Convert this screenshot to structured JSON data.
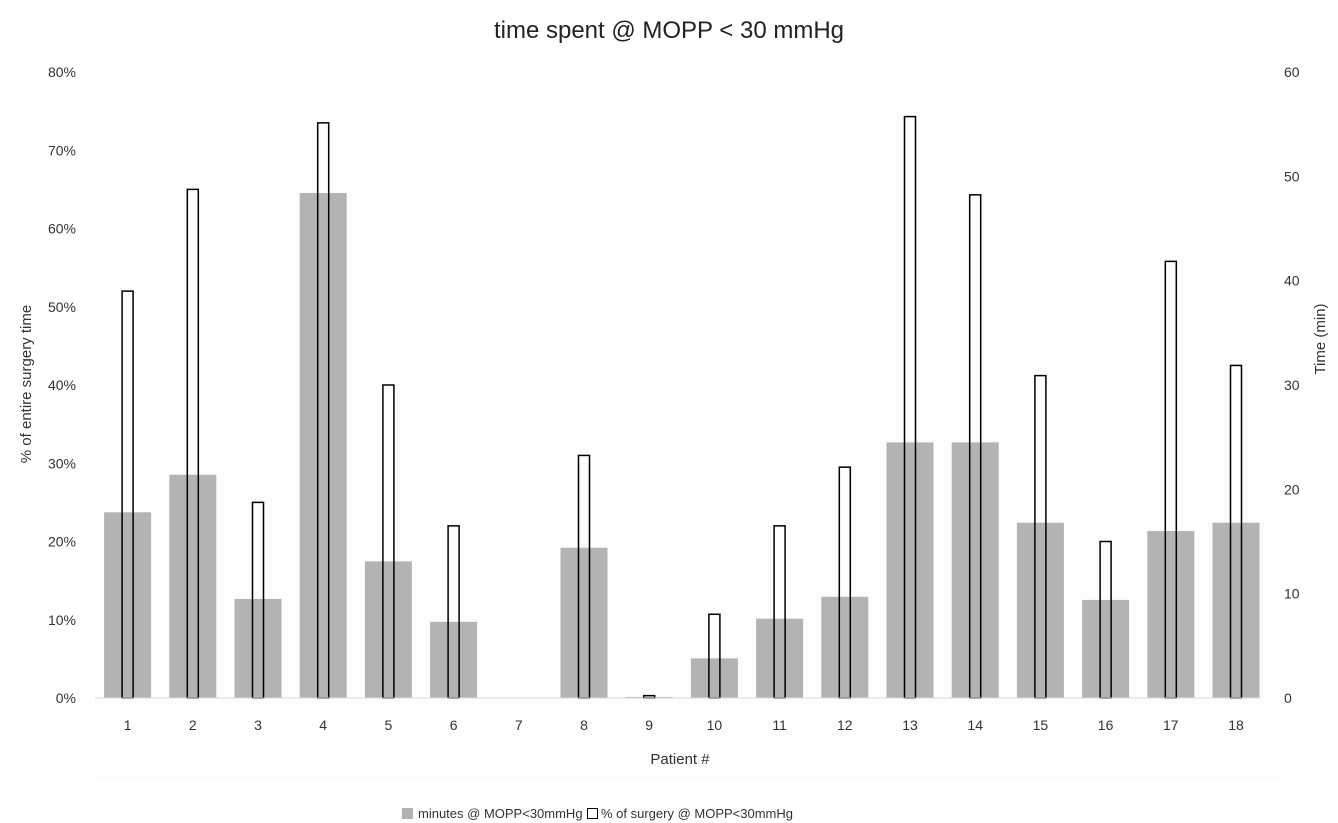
{
  "chart_data": {
    "type": "bar",
    "title": "time spent @ MOPP < 30 mmHg",
    "xlabel": "Patient #",
    "ylabel_left": "% of entire surgery time",
    "ylabel_right": "Time (min)",
    "categories": [
      "1",
      "2",
      "3",
      "4",
      "5",
      "6",
      "7",
      "8",
      "9",
      "10",
      "11",
      "12",
      "13",
      "14",
      "15",
      "16",
      "17",
      "18"
    ],
    "y_left": {
      "min": 0,
      "max": 80,
      "step": 10,
      "tick_labels": [
        "0%",
        "10%",
        "20%",
        "30%",
        "40%",
        "50%",
        "60%",
        "70%",
        "80%"
      ]
    },
    "y_right": {
      "min": 0,
      "max": 60,
      "step": 10,
      "tick_labels": [
        "0",
        "10",
        "20",
        "30",
        "40",
        "50",
        "60"
      ]
    },
    "series": [
      {
        "name": "minutes @ MOPP<30mmHg",
        "axis": "right",
        "style": "filled",
        "color": "#b3b3b3",
        "values": [
          17.8,
          21.4,
          9.5,
          48.4,
          13.1,
          7.3,
          0,
          14.4,
          0.1,
          3.8,
          7.6,
          9.7,
          24.5,
          24.5,
          16.8,
          9.4,
          16.0,
          16.8
        ]
      },
      {
        "name": "% of surgery @  MOPP<30mmHg",
        "axis": "left",
        "style": "outline",
        "color": "#000000",
        "values": [
          52,
          65,
          25,
          73.5,
          40,
          22,
          0,
          31,
          0.3,
          10.7,
          22,
          29.5,
          74.3,
          64.3,
          41.2,
          20,
          55.8,
          42.5
        ]
      }
    ],
    "legend_position": "bottom-center",
    "grid": false
  }
}
